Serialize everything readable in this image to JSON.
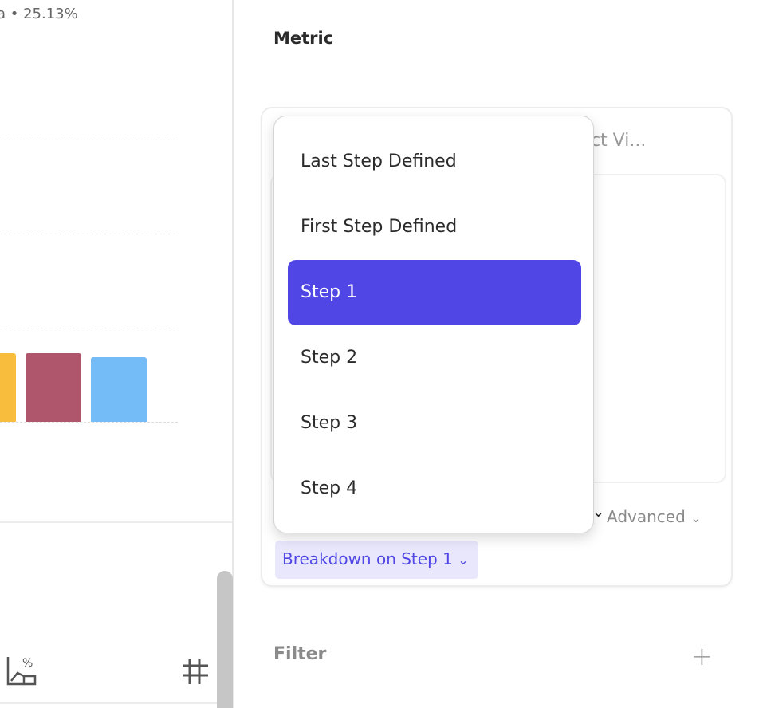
{
  "chart_panel": {
    "summary": "a • 25.13%",
    "bar_colors": [
      "#f8bd3c",
      "#b0566c",
      "#73bcf7"
    ],
    "icons": [
      "chart-percent-icon",
      "hash-icon"
    ]
  },
  "sidebar": {
    "metric_title": "Metric",
    "partial_hidden_label": "uct Vi...",
    "advanced_label": "Advanced",
    "breakdown_label": "Breakdown on Step 1",
    "filter_title": "Filter"
  },
  "dropdown": {
    "items": [
      {
        "label": "Last Step Defined",
        "selected": false
      },
      {
        "label": "First Step Defined",
        "selected": false
      },
      {
        "label": "Step 1",
        "selected": true
      },
      {
        "label": "Step 2",
        "selected": false
      },
      {
        "label": "Step 3",
        "selected": false
      },
      {
        "label": "Step 4",
        "selected": false
      }
    ]
  },
  "colors": {
    "accent": "#4f46e5",
    "accent_bg": "#e9e7fb"
  }
}
